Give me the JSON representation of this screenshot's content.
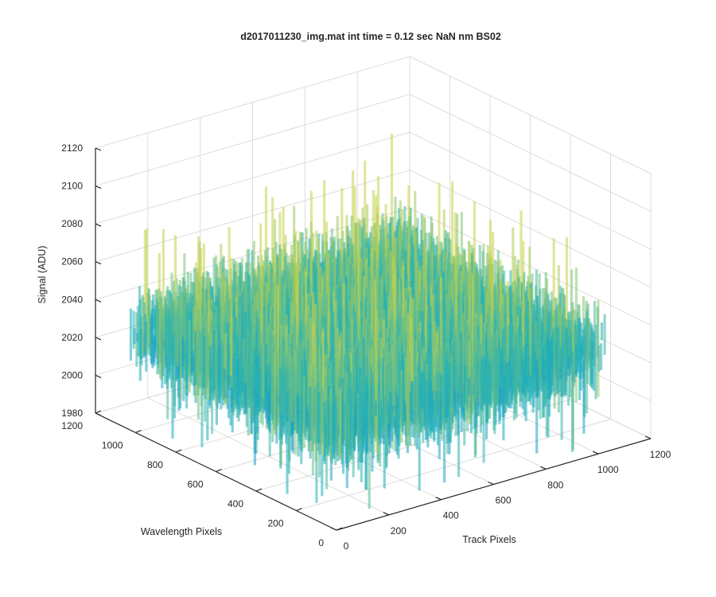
{
  "chart_data": {
    "type": "surface",
    "title": "d2017011230_img.mat int time = 0.12 sec  NaN nm BS02",
    "xlabel": "Track Pixels",
    "ylabel": "Wavelength Pixels",
    "zlabel": "Signal (ADU)",
    "xlim": [
      0,
      1200
    ],
    "ylim": [
      0,
      1200
    ],
    "zlim": [
      1980,
      2120
    ],
    "xticks": [
      "0",
      "200",
      "400",
      "600",
      "800",
      "1000",
      "1200"
    ],
    "yticks": [
      "0",
      "200",
      "400",
      "600",
      "800",
      "1000",
      "1200"
    ],
    "zticks": [
      "1980",
      "2000",
      "2020",
      "2040",
      "2060",
      "2080",
      "2100",
      "2120"
    ],
    "data_extent": {
      "x": [
        0,
        1024
      ],
      "y": [
        0,
        1024
      ]
    },
    "signal_baseline": 2035,
    "signal_typical_range": [
      2000,
      2070
    ],
    "signal_max_approx": 2110,
    "signal_min_approx": 1985,
    "colormap": "parula",
    "grid": true,
    "colors": {
      "low": "#1a8fd6",
      "mid": "#1fb0b8",
      "high": "#c8d24a",
      "axis": "#262626",
      "grid": "#dcdcdc"
    }
  }
}
